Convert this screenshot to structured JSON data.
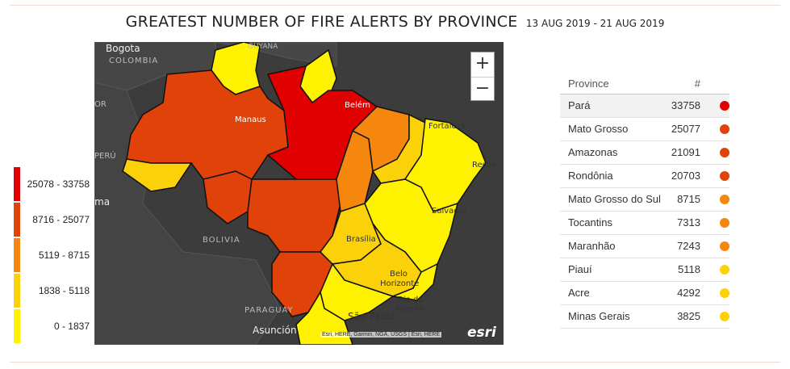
{
  "title": "GREATEST NUMBER OF FIRE ALERTS BY PROVINCE",
  "date_range": "13 AUG 2019 - 21 AUG 2019",
  "legend": [
    {
      "label": "25078 - 33758",
      "color": "#e00000"
    },
    {
      "label": "8716 - 25077",
      "color": "#e0420a"
    },
    {
      "label": "5119 - 8715",
      "color": "#f5870f"
    },
    {
      "label": "1838 - 5118",
      "color": "#fbd10a"
    },
    {
      "label": "0 - 1837",
      "color": "#fff200"
    }
  ],
  "map": {
    "labels": {
      "bogota": "Bogota",
      "colombia": "COLOMBIA",
      "guyana": "GUYANA",
      "or": "OR",
      "peru": "PERÚ",
      "ma": "ma",
      "bolivia": "BOLIVIA",
      "paraguay": "PARAGUAY",
      "asuncion": "Asunción",
      "manaus": "Manaus",
      "belem": "Belém",
      "fortaleza": "Fortaleza",
      "recife": "Recife",
      "salvador": "Salvador",
      "brasilia": "Brasília",
      "belo": "Belo",
      "horizonte": "Horizonte",
      "rio": "Rio de",
      "janeiro": "Janeiro",
      "sao_paulo": "São Paulo"
    },
    "zoom_in": "+",
    "zoom_out": "−",
    "attribution": "Esri, HERE, Garmin, NGA, USGS | Esri, HERE",
    "logo": "esri"
  },
  "table": {
    "col_province": "Province",
    "col_count": "#",
    "rows": [
      {
        "province": "Pará",
        "count": "33758",
        "color": "#e00000"
      },
      {
        "province": "Mato Grosso",
        "count": "25077",
        "color": "#e0420a"
      },
      {
        "province": "Amazonas",
        "count": "21091",
        "color": "#e0420a"
      },
      {
        "province": "Rondônia",
        "count": "20703",
        "color": "#e0420a"
      },
      {
        "province": "Mato Grosso do Sul",
        "count": "8715",
        "color": "#f5870f"
      },
      {
        "province": "Tocantins",
        "count": "7313",
        "color": "#f5870f"
      },
      {
        "province": "Maranhão",
        "count": "7243",
        "color": "#f5870f"
      },
      {
        "province": "Piauí",
        "count": "5118",
        "color": "#fbd10a"
      },
      {
        "province": "Acre",
        "count": "4292",
        "color": "#fbd10a"
      },
      {
        "province": "Minas Gerais",
        "count": "3825",
        "color": "#fbd10a"
      }
    ]
  }
}
